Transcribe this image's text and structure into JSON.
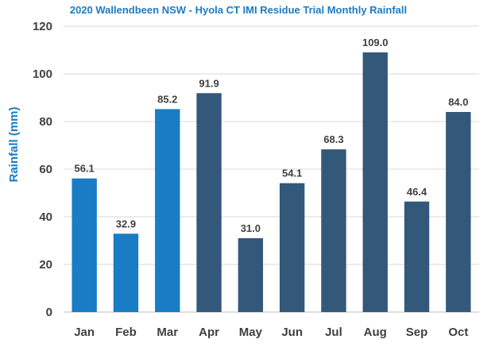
{
  "chart_data": {
    "type": "bar",
    "title": "2020 Wallendbeen NSW - Hyola CT IMI Residue Trial Monthly Rainfall",
    "xlabel": "",
    "ylabel": "Rainfall (mm)",
    "categories": [
      "Jan",
      "Feb",
      "Mar",
      "Apr",
      "May",
      "Jun",
      "Jul",
      "Aug",
      "Sep",
      "Oct"
    ],
    "values": [
      56.1,
      32.9,
      85.2,
      91.9,
      31.0,
      54.1,
      68.3,
      109.0,
      46.4,
      84.0
    ],
    "value_labels": [
      "56.1",
      "32.9",
      "85.2",
      "91.9",
      "31.0",
      "54.1",
      "68.3",
      "109.0",
      "46.4",
      "84.0"
    ],
    "ylim": [
      0,
      120
    ],
    "yticks": [
      "0",
      "20",
      "40",
      "60",
      "80",
      "100",
      "120"
    ],
    "grid": true,
    "colors": {
      "title": "#1a7cc4",
      "ylabel": "#1a7cc4",
      "bar_light": "#1a7cc4",
      "bar_dark": "#34587a",
      "grid": "#d9d9d9",
      "axis": "#bfbfbf"
    },
    "bar_color_keys": [
      "bar_light",
      "bar_light",
      "bar_light",
      "bar_dark",
      "bar_dark",
      "bar_dark",
      "bar_dark",
      "bar_dark",
      "bar_dark",
      "bar_dark"
    ]
  }
}
